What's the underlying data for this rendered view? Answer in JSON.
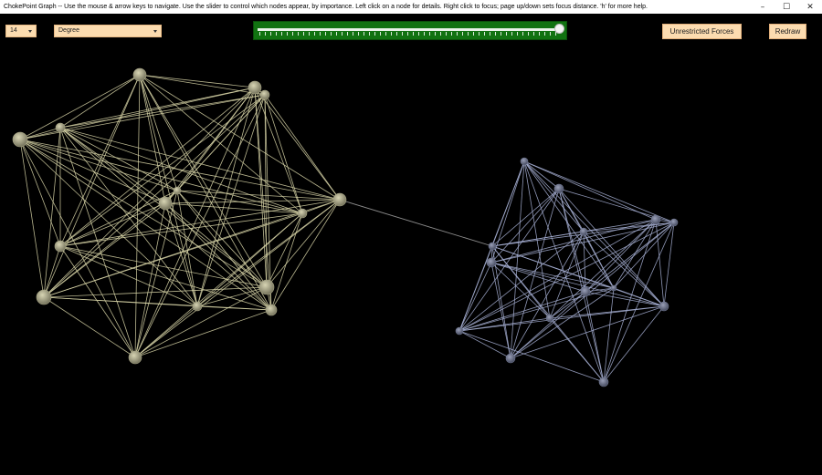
{
  "window": {
    "title": "ChokePoint Graph -- Use the mouse & arrow keys to navigate. Use the slider to control which nodes appear, by importance. Left click on a node for details. Right click to focus; page up/down sets focus distance. 'h' for more help.",
    "minimize_glyph": "–",
    "maximize_glyph": "☐",
    "close_glyph": "✕"
  },
  "toolbar": {
    "count_select": "14",
    "metric_select": "Degree",
    "importance_slider_value": 1.0,
    "forces_button": "Unrestricted Forces",
    "redraw_button": "Redraw"
  },
  "colors": {
    "cluster_a_edge": "#d9d6a8",
    "cluster_a_node": "#a7a585",
    "cluster_b_edge": "#a8b2d6",
    "cluster_b_node": "#6f7690",
    "bridge_edge": "#9a9a9a",
    "slider_green": "#117211",
    "button_fill": "#fcdcb0"
  }
}
